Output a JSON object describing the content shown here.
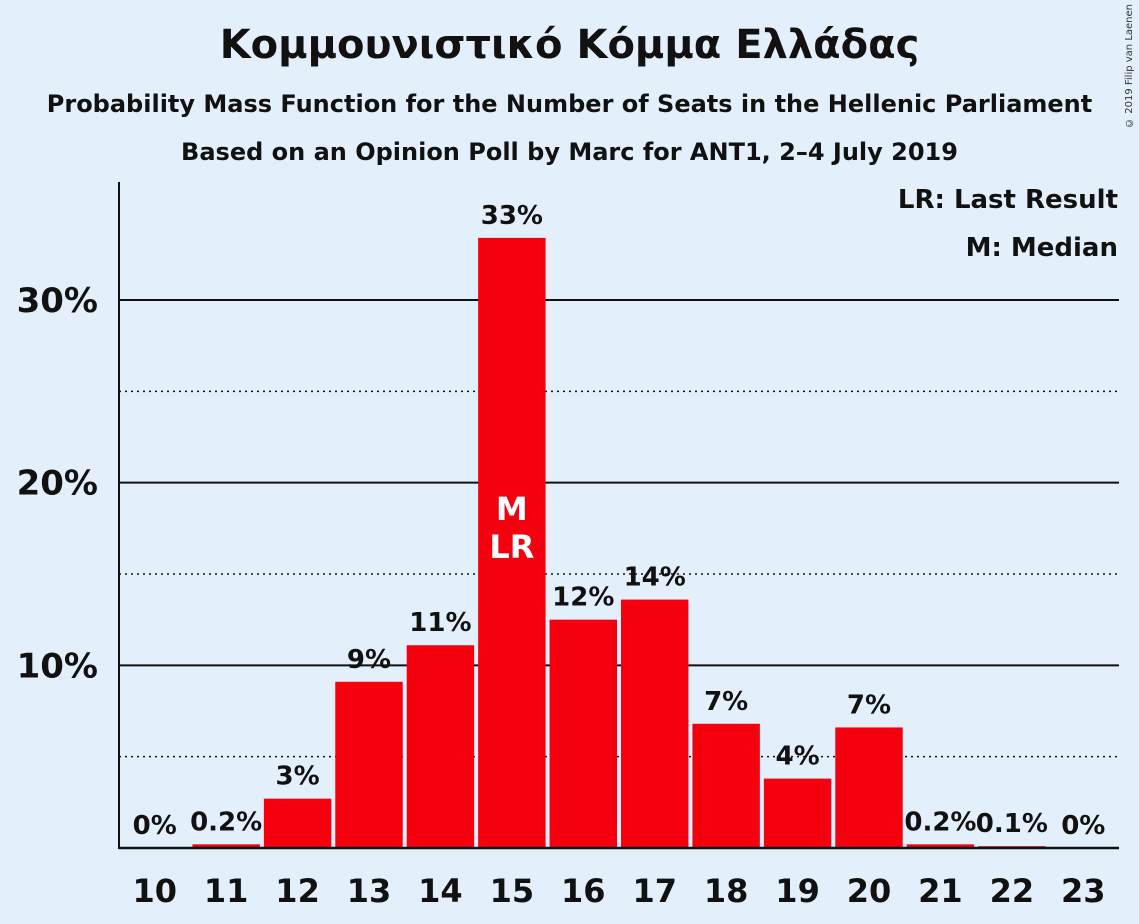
{
  "title": "Κομμουνιστικό Κόμμα Ελλάδας",
  "subtitle": "Probability Mass Function for the Number of Seats in the Hellenic Parliament",
  "subtitle2": "Based on an Opinion Poll by Marc for ANT1, 2–4 July 2019",
  "copyright": "© 2019 Filip van Laenen",
  "legend": {
    "last_result": "LR: Last Result",
    "median": "M: Median"
  },
  "colors": {
    "background": "#e3f0fc",
    "bar": "#f5000f",
    "axis": "#111111"
  },
  "chart_data": {
    "type": "bar",
    "categories": [
      "10",
      "11",
      "12",
      "13",
      "14",
      "15",
      "16",
      "17",
      "18",
      "19",
      "20",
      "21",
      "22",
      "23"
    ],
    "values": [
      0,
      0.2,
      2.7,
      9.1,
      11.1,
      33.4,
      12.5,
      13.6,
      6.8,
      3.8,
      6.6,
      0.2,
      0.1,
      0
    ],
    "data_labels": [
      "0%",
      "0.2%",
      "3%",
      "9%",
      "11%",
      "33%",
      "12%",
      "14%",
      "7%",
      "4%",
      "7%",
      "0.2%",
      "0.1%",
      "0%"
    ],
    "ylim": [
      0,
      36
    ],
    "yticks": [
      10,
      20,
      30
    ],
    "ytick_labels": [
      "10%",
      "20%",
      "30%"
    ],
    "minor_gridlines": [
      5,
      15,
      25
    ],
    "grid": true,
    "legend_placement": "top-right",
    "median_seat": "15",
    "last_result_seat": "15",
    "markers": {
      "median": "M",
      "last_result": "LR"
    }
  }
}
